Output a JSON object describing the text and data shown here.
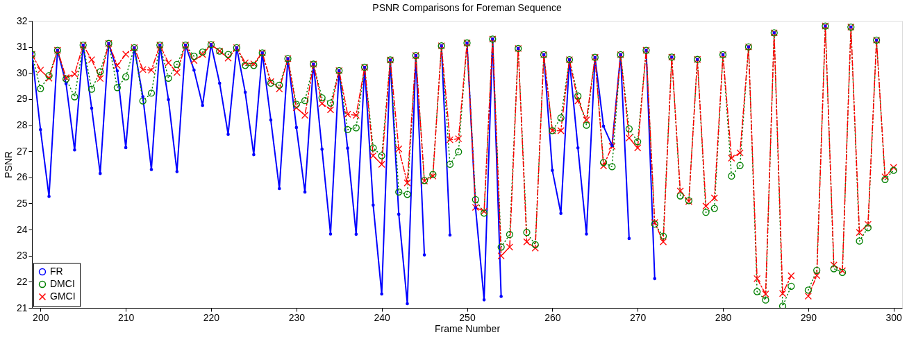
{
  "chart_data": {
    "type": "line",
    "title": "PSNR Comparisons for Foreman Sequence",
    "xlabel": "Frame Number",
    "ylabel": "PSNR",
    "x": [
      199,
      200,
      201,
      202,
      203,
      204,
      205,
      206,
      207,
      208,
      209,
      210,
      211,
      212,
      213,
      214,
      215,
      216,
      217,
      218,
      219,
      220,
      221,
      222,
      223,
      224,
      225,
      226,
      227,
      228,
      229,
      230,
      231,
      232,
      233,
      234,
      235,
      236,
      237,
      238,
      239,
      240,
      241,
      242,
      243,
      244,
      245,
      246,
      247,
      248,
      249,
      250,
      251,
      252,
      253,
      254,
      255,
      256,
      257,
      258,
      259,
      260,
      261,
      262,
      263,
      264,
      265,
      266,
      267,
      268,
      269,
      270,
      271,
      272,
      273,
      274,
      275,
      276,
      277,
      278,
      279,
      280,
      281,
      282,
      283,
      284,
      285,
      286,
      287,
      288,
      289,
      290,
      291,
      292,
      293,
      294,
      295,
      296,
      297,
      298,
      299,
      300
    ],
    "xlim": [
      199,
      301
    ],
    "xticks": [
      200,
      210,
      220,
      230,
      240,
      250,
      260,
      270,
      280,
      290,
      300
    ],
    "ylim": [
      21,
      32
    ],
    "yticks": [
      21,
      22,
      23,
      24,
      25,
      26,
      27,
      28,
      29,
      30,
      31,
      32
    ],
    "grid": false,
    "legend": "bottom left",
    "series": [
      {
        "name": "FR",
        "color": "#0000ff",
        "marker": "circle",
        "line_style": "solid",
        "values": [
          30.74,
          27.83,
          25.27,
          30.87,
          29.59,
          27.05,
          31.07,
          28.65,
          26.15,
          31.13,
          30.08,
          27.14,
          30.97,
          29.09,
          26.3,
          31.07,
          28.98,
          26.22,
          31.07,
          30.11,
          28.76,
          31.09,
          29.61,
          27.65,
          30.97,
          29.26,
          26.87,
          30.77,
          28.2,
          25.57,
          30.55,
          27.91,
          25.44,
          30.34,
          27.08,
          23.83,
          30.09,
          27.12,
          23.82,
          30.22,
          24.94,
          21.53,
          30.5,
          24.59,
          21.16,
          30.67,
          23.03,
          null,
          31.04,
          23.79,
          null,
          31.15,
          24.83,
          21.31,
          31.3,
          21.44,
          null,
          30.94,
          null,
          null,
          30.7,
          26.27,
          24.62,
          30.51,
          27.13,
          23.83,
          30.6,
          27.96,
          27.22,
          30.7,
          23.66,
          null,
          30.87,
          22.12,
          null,
          30.61,
          null,
          null,
          30.52,
          null,
          null,
          30.7,
          null,
          null,
          31.0,
          null,
          null,
          31.54,
          null,
          null,
          null,
          null,
          null,
          31.8,
          null,
          null,
          31.76,
          null,
          null,
          31.26,
          null,
          null
        ]
      },
      {
        "name": "DMCI",
        "color": "#008000",
        "marker": "circle",
        "line_style": "dotted",
        "values": [
          30.72,
          29.4,
          29.9,
          30.87,
          29.77,
          29.09,
          31.07,
          29.38,
          30.05,
          31.13,
          29.44,
          29.85,
          30.97,
          28.93,
          29.23,
          31.07,
          29.8,
          30.33,
          31.07,
          30.64,
          30.8,
          31.09,
          30.84,
          30.71,
          30.97,
          30.29,
          30.29,
          30.77,
          29.61,
          29.53,
          30.55,
          28.8,
          28.94,
          30.34,
          29.05,
          28.85,
          30.09,
          27.83,
          27.9,
          30.22,
          27.13,
          26.83,
          30.5,
          25.44,
          25.35,
          30.67,
          25.88,
          26.11,
          31.04,
          26.5,
          26.98,
          31.15,
          25.15,
          24.63,
          31.3,
          23.33,
          23.81,
          30.94,
          23.89,
          23.42,
          30.7,
          27.79,
          28.28,
          30.51,
          29.12,
          28.0,
          30.6,
          26.57,
          26.41,
          30.7,
          27.86,
          27.37,
          30.87,
          24.21,
          23.75,
          30.61,
          25.29,
          25.11,
          30.52,
          24.66,
          24.81,
          30.7,
          26.05,
          26.46,
          31.0,
          21.62,
          21.3,
          31.54,
          21.07,
          21.83,
          null,
          21.68,
          22.44,
          31.8,
          22.5,
          22.36,
          31.76,
          23.56,
          24.07,
          31.26,
          25.92,
          26.27
        ]
      },
      {
        "name": "GMCI",
        "color": "#ff0000",
        "marker": "cross",
        "line_style": "dashed",
        "values": [
          30.72,
          30.11,
          29.8,
          30.87,
          29.82,
          29.96,
          31.07,
          30.51,
          29.79,
          31.13,
          30.29,
          30.72,
          30.97,
          30.13,
          30.11,
          31.07,
          30.39,
          30.02,
          31.07,
          30.48,
          30.71,
          31.09,
          30.84,
          30.57,
          30.97,
          30.39,
          30.35,
          30.77,
          29.67,
          29.39,
          30.55,
          28.67,
          28.38,
          30.34,
          28.83,
          28.59,
          30.09,
          28.42,
          28.38,
          30.22,
          26.83,
          26.5,
          30.5,
          27.09,
          25.79,
          30.67,
          25.86,
          26.05,
          31.04,
          27.44,
          27.48,
          31.15,
          24.85,
          24.7,
          31.3,
          22.99,
          23.33,
          30.94,
          23.53,
          23.29,
          30.7,
          27.79,
          27.79,
          30.51,
          28.93,
          28.2,
          30.6,
          26.44,
          27.19,
          30.7,
          27.51,
          27.13,
          30.87,
          24.27,
          23.53,
          30.61,
          25.48,
          25.08,
          30.52,
          24.9,
          25.21,
          30.7,
          26.74,
          26.94,
          31.0,
          22.12,
          21.53,
          31.54,
          21.55,
          22.23,
          null,
          21.45,
          22.24,
          31.8,
          22.64,
          22.42,
          31.76,
          23.89,
          24.2,
          31.26,
          26.02,
          26.38
        ]
      }
    ]
  }
}
